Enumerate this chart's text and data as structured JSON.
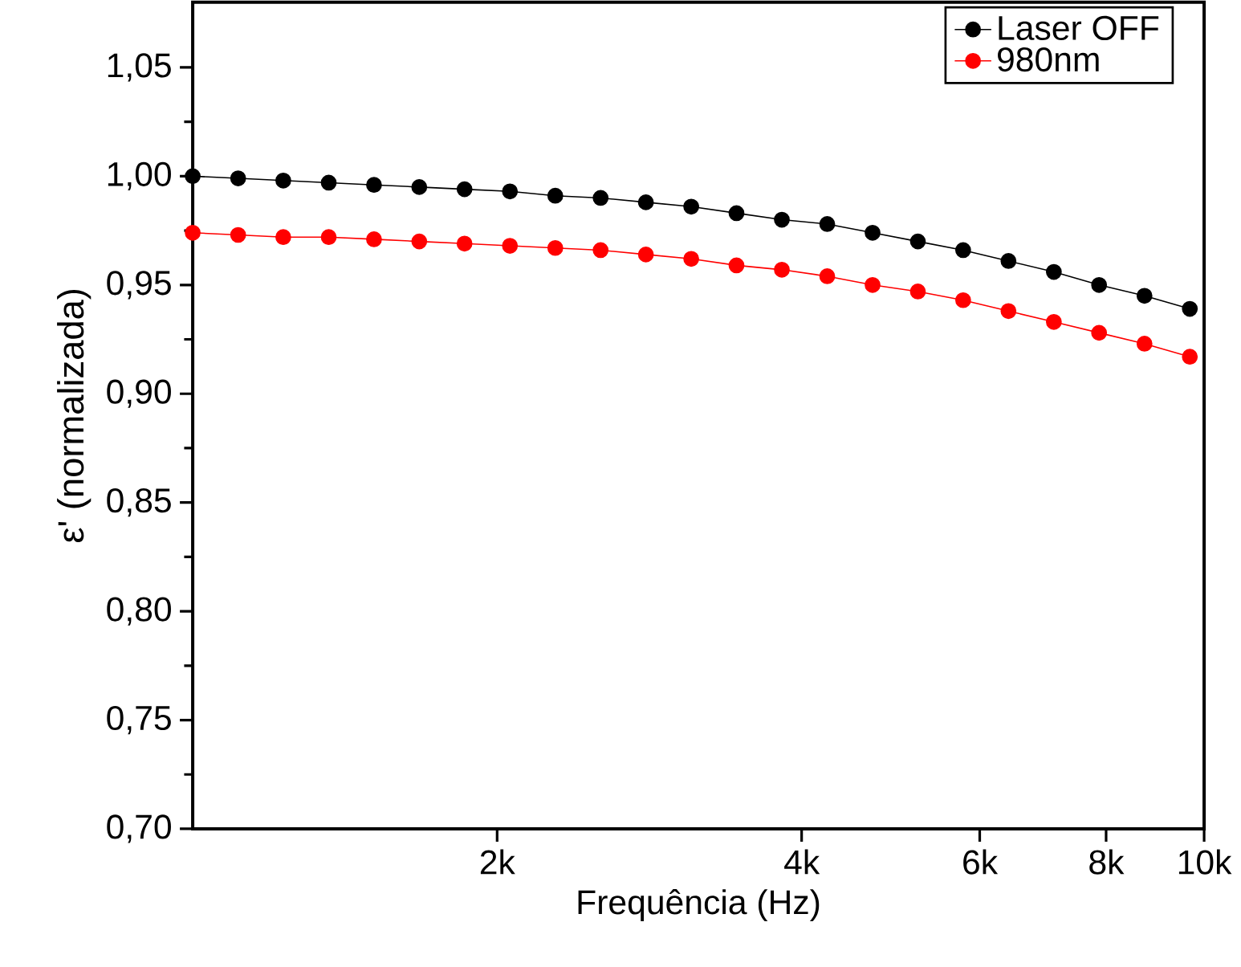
{
  "chart_data": {
    "type": "line",
    "xlabel": "Frequência (Hz)",
    "ylabel": "ε' (normalizada)",
    "x": [
      1000,
      1109,
      1229,
      1363,
      1511,
      1675,
      1857,
      2059,
      2283,
      2531,
      2806,
      3111,
      3449,
      3824,
      4240,
      4701,
      5212,
      5778,
      6406,
      7103,
      7875,
      8731,
      9680
    ],
    "series": [
      {
        "name": "Laser OFF",
        "color": "#000000",
        "values": [
          1.0,
          0.999,
          0.998,
          0.997,
          0.996,
          0.995,
          0.994,
          0.993,
          0.991,
          0.99,
          0.988,
          0.986,
          0.983,
          0.98,
          0.978,
          0.974,
          0.97,
          0.966,
          0.961,
          0.956,
          0.95,
          0.945,
          0.939
        ]
      },
      {
        "name": "980nm",
        "color": "#ff0000",
        "values": [
          0.974,
          0.973,
          0.972,
          0.972,
          0.971,
          0.97,
          0.969,
          0.968,
          0.967,
          0.966,
          0.964,
          0.962,
          0.959,
          0.957,
          0.954,
          0.95,
          0.947,
          0.943,
          0.938,
          0.933,
          0.928,
          0.923,
          0.917
        ]
      }
    ],
    "log": "x",
    "xlim": [
      1000,
      10000
    ],
    "xticks": [
      {
        "value": 2000,
        "label": "2k"
      },
      {
        "value": 4000,
        "label": "4k"
      },
      {
        "value": 6000,
        "label": "6k"
      },
      {
        "value": 8000,
        "label": "8k"
      },
      {
        "value": 10000,
        "label": "10k"
      }
    ],
    "ylim": [
      0.7,
      1.08
    ],
    "yticks": [
      {
        "value": 0.7,
        "label": "0,70"
      },
      {
        "value": 0.75,
        "label": "0,75"
      },
      {
        "value": 0.8,
        "label": "0,80"
      },
      {
        "value": 0.85,
        "label": "0,85"
      },
      {
        "value": 0.9,
        "label": "0,90"
      },
      {
        "value": 0.95,
        "label": "0,95"
      },
      {
        "value": 1.0,
        "label": "1,00"
      },
      {
        "value": 1.05,
        "label": "1,05"
      }
    ],
    "grid": false,
    "legend": "top right",
    "marker": "circle",
    "line_style": "solid"
  }
}
